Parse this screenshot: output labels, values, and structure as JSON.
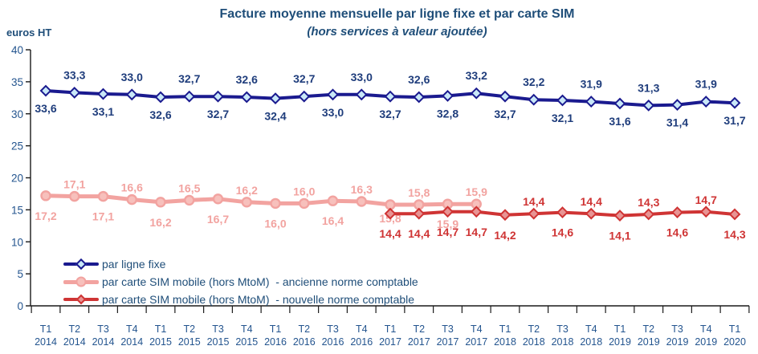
{
  "chart": {
    "title": "Facture moyenne mensuelle par ligne fixe et par carte SIM",
    "subtitle": "(hors services à valeur ajoutée)",
    "y_unit": "euros HT"
  },
  "chart_data": {
    "type": "line",
    "title": "Facture moyenne mensuelle par ligne fixe et par carte SIM",
    "subtitle": "(hors services à valeur ajoutée)",
    "ylabel": "euros HT",
    "ylim": [
      0,
      40
    ],
    "y_ticks": [
      0,
      5,
      10,
      15,
      20,
      25,
      30,
      35,
      40
    ],
    "grid": false,
    "legend_position": "inside-bottom-left",
    "x_categories": [
      {
        "q": "T1",
        "yr": "2014"
      },
      {
        "q": "T2",
        "yr": "2014"
      },
      {
        "q": "T3",
        "yr": "2014"
      },
      {
        "q": "T4",
        "yr": "2014"
      },
      {
        "q": "T1",
        "yr": "2015"
      },
      {
        "q": "T2",
        "yr": "2015"
      },
      {
        "q": "T3",
        "yr": "2015"
      },
      {
        "q": "T4",
        "yr": "2015"
      },
      {
        "q": "T1",
        "yr": "2016"
      },
      {
        "q": "T2",
        "yr": "2016"
      },
      {
        "q": "T3",
        "yr": "2016"
      },
      {
        "q": "T4",
        "yr": "2016"
      },
      {
        "q": "T1",
        "yr": "2017"
      },
      {
        "q": "T2",
        "yr": "2017"
      },
      {
        "q": "T3",
        "yr": "2017"
      },
      {
        "q": "T4",
        "yr": "2017"
      },
      {
        "q": "T1",
        "yr": "2018"
      },
      {
        "q": "T2",
        "yr": "2018"
      },
      {
        "q": "T3",
        "yr": "2018"
      },
      {
        "q": "T4",
        "yr": "2018"
      },
      {
        "q": "T1",
        "yr": "2019"
      },
      {
        "q": "T2",
        "yr": "2019"
      },
      {
        "q": "T3",
        "yr": "2019"
      },
      {
        "q": "T4",
        "yr": "2019"
      },
      {
        "q": "T1",
        "yr": "2020"
      }
    ],
    "series": [
      {
        "name": "par ligne fixe",
        "color": "#1A1A8F",
        "marker": "diamond",
        "marker_fill": "#C9E8F8",
        "label_color": "#1F3D7C",
        "line_width": 4,
        "start_index": 0,
        "values": [
          33.6,
          33.3,
          33.1,
          33.0,
          32.6,
          32.7,
          32.7,
          32.6,
          32.4,
          32.7,
          33.0,
          33.0,
          32.7,
          32.6,
          32.8,
          33.2,
          32.7,
          32.2,
          32.1,
          31.9,
          31.6,
          31.3,
          31.4,
          31.9,
          31.7
        ],
        "label_pos": [
          "below",
          "above",
          "below",
          "above",
          "below",
          "above",
          "below",
          "above",
          "below",
          "above",
          "below",
          "above",
          "below",
          "above",
          "below",
          "above",
          "below",
          "above",
          "below",
          "above",
          "below",
          "above",
          "below",
          "above",
          "below"
        ],
        "label_off_above": -17,
        "label_off_below": 27
      },
      {
        "name": "par carte SIM mobile (hors MtoM)  - ancienne norme comptable",
        "color": "#F2A3A0",
        "marker": "circle",
        "marker_fill": "#F7C0BC",
        "label_color": "#F2A3A0",
        "line_width": 5,
        "start_index": 0,
        "values": [
          17.2,
          17.1,
          17.1,
          16.6,
          16.2,
          16.5,
          16.7,
          16.2,
          16.0,
          16.0,
          16.4,
          16.3,
          15.8,
          15.8,
          15.9,
          15.9
        ],
        "label_pos": [
          "below",
          "above",
          "below",
          "above",
          "below",
          "above",
          "below",
          "above",
          "below",
          "above",
          "below",
          "above",
          "below",
          "above",
          "below",
          "above"
        ],
        "label_dy": [
          0,
          0,
          0,
          0,
          0,
          0,
          0,
          0,
          0,
          0,
          0,
          0,
          -8,
          0,
          0,
          0
        ],
        "label_off_above": -10,
        "label_off_below": 30
      },
      {
        "name": "par carte SIM mobile (hors MtoM)  - nouvelle norme comptable",
        "color": "#CF3434",
        "marker": "diamond",
        "marker_fill": "#E89494",
        "label_color": "#CF3434",
        "line_width": 4,
        "start_index": 12,
        "values": [
          14.4,
          14.4,
          14.7,
          14.7,
          14.2,
          14.4,
          14.6,
          14.4,
          14.1,
          14.3,
          14.6,
          14.7,
          14.3
        ],
        "label_pos": [
          "below",
          "below",
          "below",
          "below",
          "below",
          "above",
          "below",
          "above",
          "below",
          "above",
          "below",
          "above",
          "below"
        ],
        "label_off_above": -10,
        "label_off_below": 30
      }
    ]
  }
}
